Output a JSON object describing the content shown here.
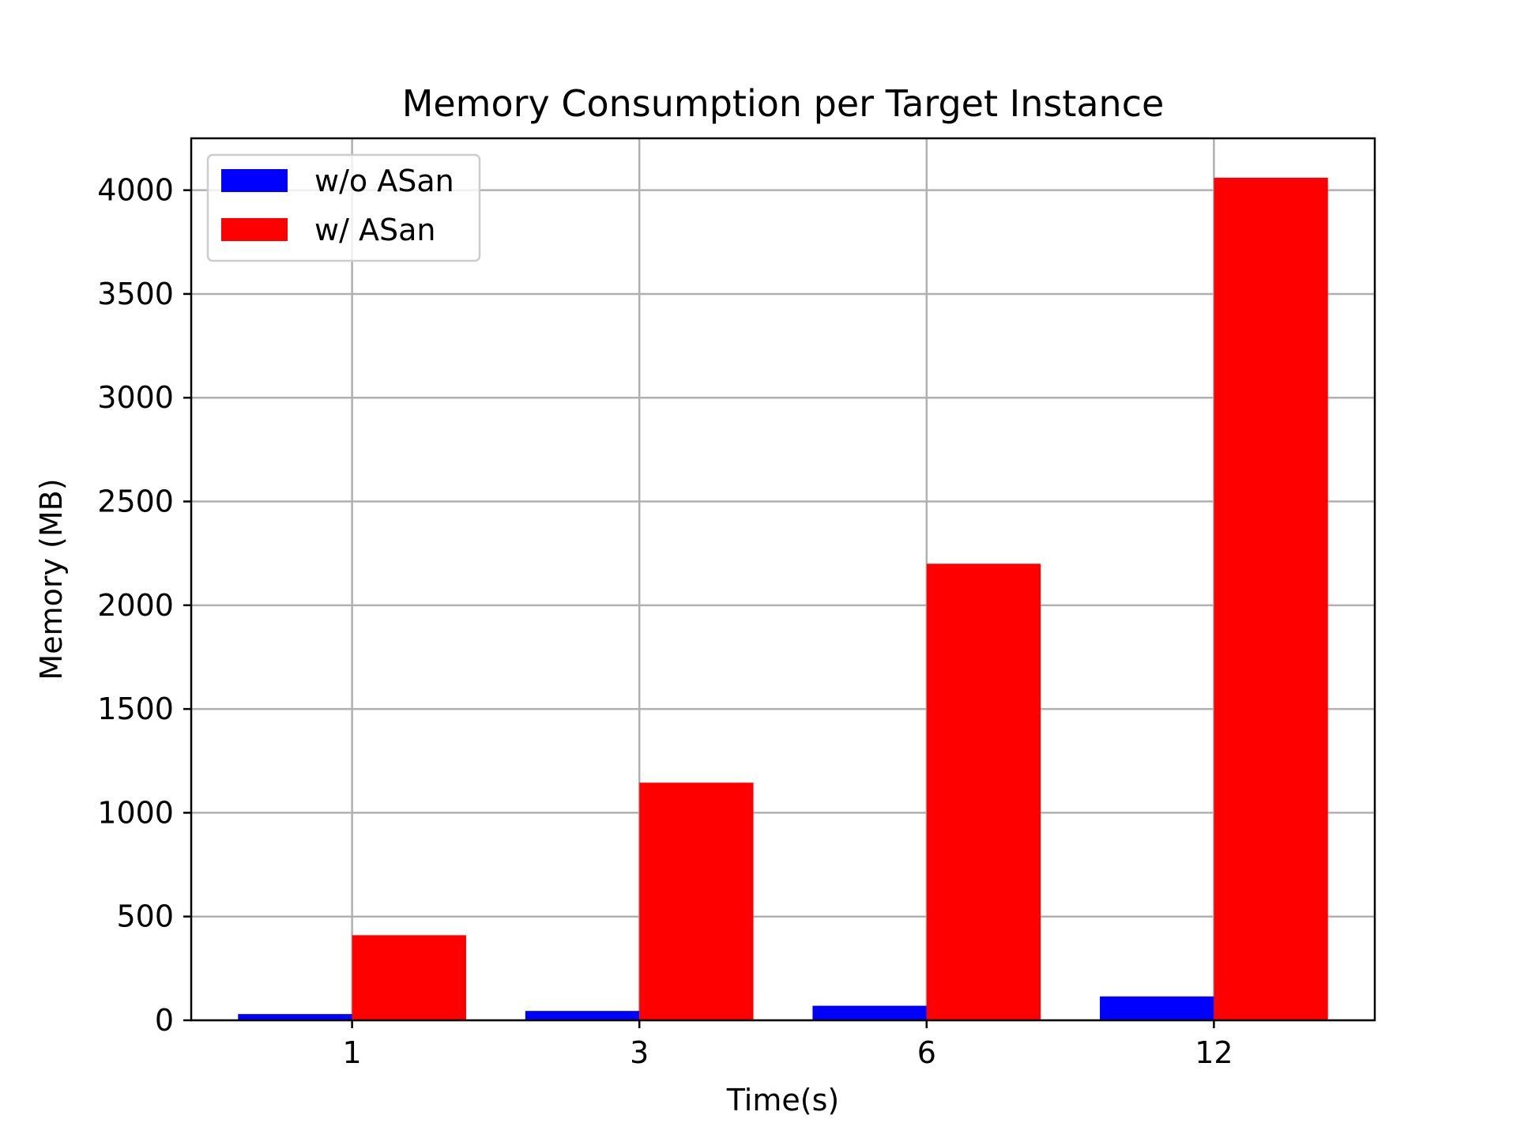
{
  "chart_data": {
    "type": "bar",
    "title": "Memory Consumption per Target Instance",
    "xlabel": "Time(s)",
    "ylabel": "Memory (MB)",
    "categories": [
      "1",
      "3",
      "6",
      "12"
    ],
    "series": [
      {
        "name": "w/o ASan",
        "color": "#0000ff",
        "values": [
          30,
          45,
          70,
          115
        ]
      },
      {
        "name": "w/ ASan",
        "color": "#ff0000",
        "values": [
          410,
          1145,
          2200,
          4060
        ]
      }
    ],
    "ylim": [
      0,
      4250
    ],
    "yticks": [
      0,
      500,
      1000,
      1500,
      2000,
      2500,
      3000,
      3500,
      4000
    ],
    "grid": true,
    "legend_position": "top-left"
  }
}
